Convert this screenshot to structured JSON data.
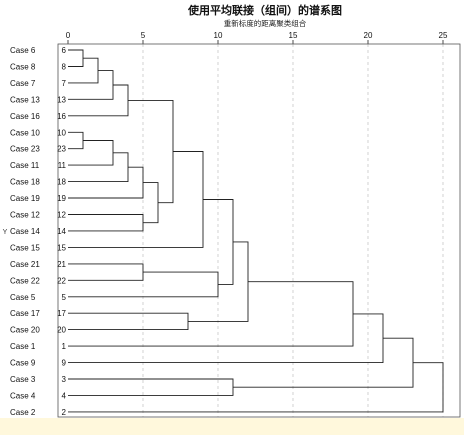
{
  "chart_data": {
    "type": "dendrogram",
    "title": "使用平均联接（组间）的谱系图",
    "subtitle": "重新标度的距离聚类组合",
    "ylabel": "Y",
    "x_ticks": [
      0,
      5,
      10,
      15,
      20,
      25
    ],
    "xlim": [
      0,
      25
    ],
    "leaves": [
      {
        "label": "Case 6",
        "num": "6"
      },
      {
        "label": "Case 8",
        "num": "8"
      },
      {
        "label": "Case 7",
        "num": "7"
      },
      {
        "label": "Case 13",
        "num": "13"
      },
      {
        "label": "Case 16",
        "num": "16"
      },
      {
        "label": "Case 10",
        "num": "10"
      },
      {
        "label": "Case 23",
        "num": "23"
      },
      {
        "label": "Case 11",
        "num": "11"
      },
      {
        "label": "Case 18",
        "num": "18"
      },
      {
        "label": "Case 19",
        "num": "19"
      },
      {
        "label": "Case 12",
        "num": "12"
      },
      {
        "label": "Case 14",
        "num": "14"
      },
      {
        "label": "Case 15",
        "num": "15"
      },
      {
        "label": "Case 21",
        "num": "21"
      },
      {
        "label": "Case 22",
        "num": "22"
      },
      {
        "label": "Case 5",
        "num": "5"
      },
      {
        "label": "Case 17",
        "num": "17"
      },
      {
        "label": "Case 20",
        "num": "20"
      },
      {
        "label": "Case 1",
        "num": "1"
      },
      {
        "label": "Case 9",
        "num": "9"
      },
      {
        "label": "Case 3",
        "num": "3"
      },
      {
        "label": "Case 4",
        "num": "4"
      },
      {
        "label": "Case 2",
        "num": "2"
      }
    ],
    "merges": [
      {
        "a": "6",
        "b": "8",
        "distance": 1
      },
      {
        "a": "10",
        "b": "23",
        "distance": 1
      },
      {
        "a": "6+8",
        "b": "7",
        "distance": 2
      },
      {
        "a": "10+23",
        "b": "11",
        "distance": 3
      },
      {
        "a": "6+8+7",
        "b": "13",
        "distance": 3
      },
      {
        "a": "6+8+7+13",
        "b": "16",
        "distance": 4
      },
      {
        "a": "10+23+11",
        "b": "18",
        "distance": 4
      },
      {
        "a": "10+23+11+18",
        "b": "19",
        "distance": 5
      },
      {
        "a": "21",
        "b": "22",
        "distance": 5
      },
      {
        "a": "12",
        "b": "14",
        "distance": 5
      },
      {
        "a": "10..19",
        "b": "12+14",
        "distance": 6
      },
      {
        "a": "6..16",
        "b": "10..14",
        "distance": 7
      },
      {
        "a": "17",
        "b": "20",
        "distance": 8
      },
      {
        "a": "6..14",
        "b": "15",
        "distance": 9
      },
      {
        "a": "21+22",
        "b": "5",
        "distance": 10
      },
      {
        "a": "6..15",
        "b": "21+22+5",
        "distance": 11
      },
      {
        "a": "3",
        "b": "4",
        "distance": 11
      },
      {
        "a": "6..5",
        "b": "17+20",
        "distance": 12
      },
      {
        "a": "6..20",
        "b": "1",
        "distance": 19
      },
      {
        "a": "6..1",
        "b": "9",
        "distance": 21
      },
      {
        "a": "6..9",
        "b": "3+4",
        "distance": 23
      },
      {
        "a": "6..4",
        "b": "2",
        "distance": 25
      }
    ],
    "grid": true
  }
}
